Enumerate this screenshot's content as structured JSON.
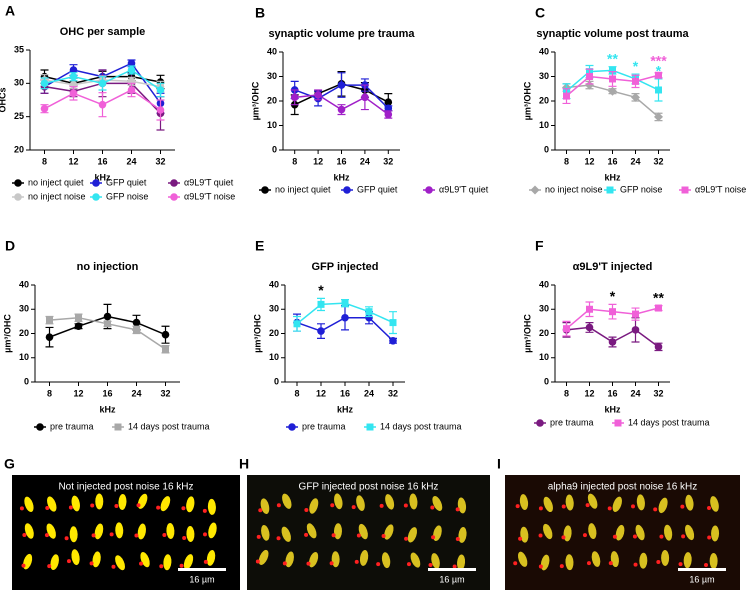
{
  "chart_data": [
    {
      "type": "line",
      "panel": "A",
      "title": "OHC per sample",
      "xlabel": "kHz",
      "ylabel": "OHCs",
      "categories": [
        "8",
        "12",
        "16",
        "24",
        "32"
      ],
      "ylim": [
        20,
        35
      ],
      "yticks": [
        20,
        25,
        30,
        35
      ],
      "series": [
        {
          "name": "no inject quiet",
          "color": "#000000",
          "marker": "circle",
          "values": [
            31,
            30,
            31,
            31,
            30.2
          ],
          "errors": [
            1,
            0.8,
            0.8,
            0.6,
            1
          ]
        },
        {
          "name": "GFP quiet",
          "color": "#1f1fd6",
          "marker": "circle",
          "values": [
            29.5,
            32,
            31,
            33,
            27
          ],
          "errors": [
            1,
            0.8,
            1,
            0.5,
            1.5
          ]
        },
        {
          "name": "α9L9'T quiet",
          "color": "#7a1a80",
          "marker": "circle",
          "values": [
            29.5,
            28.8,
            30,
            30,
            25.5
          ],
          "errors": [
            1,
            0.8,
            2,
            1.5,
            2.5
          ]
        },
        {
          "name": "no inject noise",
          "color": "#c8c8c8",
          "marker": "circle",
          "values": [
            30.5,
            29.8,
            30.5,
            30.3,
            29.5
          ],
          "errors": [
            0.8,
            0.6,
            0.6,
            0.6,
            0.8
          ]
        },
        {
          "name": "GFP noise",
          "color": "#33e5f0",
          "marker": "circle",
          "values": [
            30,
            31,
            30,
            32,
            29
          ],
          "errors": [
            0.8,
            0.6,
            1,
            0.6,
            1
          ]
        },
        {
          "name": "α9L9'T noise",
          "color": "#f060d8",
          "marker": "circle",
          "values": [
            26.2,
            28.5,
            26.8,
            29,
            26
          ],
          "errors": [
            0.6,
            1,
            1.8,
            1,
            1.5
          ]
        }
      ]
    },
    {
      "type": "line",
      "panel": "B",
      "title": "synaptic volume pre trauma",
      "xlabel": "kHz",
      "ylabel": "µm³/OHC",
      "categories": [
        "8",
        "12",
        "16",
        "24",
        "32"
      ],
      "ylim": [
        0,
        40
      ],
      "yticks": [
        0,
        10,
        20,
        30,
        40
      ],
      "series": [
        {
          "name": "no inject quiet",
          "color": "#000000",
          "marker": "circle",
          "values": [
            18.5,
            23,
            27,
            24.5,
            19.5
          ],
          "errors": [
            4,
            1,
            5,
            3,
            3.5
          ]
        },
        {
          "name": "GFP quiet",
          "color": "#1f1fd6",
          "marker": "circle",
          "values": [
            24.5,
            21,
            26.5,
            26.5,
            17
          ],
          "errors": [
            3.5,
            3,
            5,
            2.5,
            1
          ]
        },
        {
          "name": "α9L9'T quiet",
          "color": "#a020c8",
          "marker": "circle",
          "values": [
            21.5,
            22.5,
            16.5,
            21.5,
            14.5
          ],
          "errors": [
            3,
            2,
            2,
            5,
            1.5
          ]
        }
      ]
    },
    {
      "type": "line",
      "panel": "C",
      "title": "synaptic volume post trauma",
      "xlabel": "kHz",
      "ylabel": "µm³/OHC",
      "categories": [
        "8",
        "12",
        "16",
        "24",
        "32"
      ],
      "ylim": [
        0,
        40
      ],
      "yticks": [
        0,
        10,
        20,
        30,
        40
      ],
      "series": [
        {
          "name": "no inject noise",
          "color": "#a8a8a8",
          "marker": "diamond",
          "values": [
            25.5,
            26.5,
            24,
            21.5,
            13.5
          ],
          "errors": [
            1.5,
            1.5,
            1,
            1.5,
            1.5
          ]
        },
        {
          "name": "GFP noise",
          "color": "#33e5f0",
          "marker": "square",
          "values": [
            24,
            32,
            32.5,
            29,
            24.5
          ],
          "errors": [
            3,
            2.5,
            1.5,
            2,
            4.5
          ]
        },
        {
          "name": "α9L9'T noise",
          "color": "#f060d8",
          "marker": "square",
          "values": [
            22,
            30,
            29,
            28,
            30.5
          ],
          "errors": [
            3,
            3,
            3,
            2.5,
            1
          ]
        }
      ],
      "annotations": [
        {
          "text": "**",
          "at": "16",
          "series": "GFP noise",
          "color": "#33e5f0"
        },
        {
          "text": "*",
          "at": "24",
          "series": "GFP noise",
          "color": "#33e5f0"
        },
        {
          "text": "*",
          "at": "32",
          "series": "GFP noise",
          "color": "#33e5f0"
        },
        {
          "text": "***",
          "at": "32",
          "series": "α9L9'T noise",
          "color": "#f060d8"
        }
      ]
    },
    {
      "type": "line",
      "panel": "D",
      "title": "no injection",
      "xlabel": "kHz",
      "ylabel": "µm³/OHC",
      "categories": [
        "8",
        "12",
        "16",
        "24",
        "32"
      ],
      "ylim": [
        0,
        40
      ],
      "yticks": [
        0,
        10,
        20,
        30,
        40
      ],
      "series": [
        {
          "name": "pre trauma",
          "color": "#000000",
          "marker": "circle",
          "values": [
            18.5,
            23,
            27,
            24.5,
            19.5
          ],
          "errors": [
            4,
            1,
            5,
            3,
            3.5
          ]
        },
        {
          "name": "14 days post trauma",
          "color": "#a8a8a8",
          "marker": "square",
          "values": [
            25.5,
            26.5,
            24,
            21.5,
            13.5
          ],
          "errors": [
            1.5,
            1.5,
            1,
            1.5,
            1.5
          ]
        }
      ]
    },
    {
      "type": "line",
      "panel": "E",
      "title": "GFP injected",
      "xlabel": "kHz",
      "ylabel": "µm³/OHC",
      "categories": [
        "8",
        "12",
        "16",
        "24",
        "32"
      ],
      "ylim": [
        0,
        40
      ],
      "yticks": [
        0,
        10,
        20,
        30,
        40
      ],
      "series": [
        {
          "name": "pre trauma",
          "color": "#1f1fd6",
          "marker": "circle",
          "values": [
            24.5,
            21,
            26.5,
            26.5,
            17
          ],
          "errors": [
            3.5,
            3,
            5,
            2.5,
            1
          ]
        },
        {
          "name": "14 days post trauma",
          "color": "#33e5f0",
          "marker": "square",
          "values": [
            24,
            32,
            32.5,
            29,
            24.5
          ],
          "errors": [
            3,
            2.5,
            1.5,
            2,
            4.5
          ]
        }
      ],
      "annotations": [
        {
          "text": "*",
          "at": "12",
          "series": "14 days post trauma",
          "color": "#000000"
        }
      ]
    },
    {
      "type": "line",
      "panel": "F",
      "title": "α9L9'T injected",
      "xlabel": "kHz",
      "ylabel": "µm³/OHC",
      "categories": [
        "8",
        "12",
        "16",
        "24",
        "32"
      ],
      "ylim": [
        0,
        40
      ],
      "yticks": [
        0,
        10,
        20,
        30,
        40
      ],
      "series": [
        {
          "name": "pre trauma",
          "color": "#7a1a80",
          "marker": "circle",
          "values": [
            21.5,
            22.5,
            16.5,
            21.5,
            14.5
          ],
          "errors": [
            3,
            2,
            2,
            5,
            1.5
          ]
        },
        {
          "name": "14 days post trauma",
          "color": "#f060d8",
          "marker": "square",
          "values": [
            22,
            30,
            29,
            28,
            30.5
          ],
          "errors": [
            3,
            3,
            3,
            2.5,
            1
          ]
        }
      ],
      "annotations": [
        {
          "text": "*",
          "at": "16",
          "series": "14 days post trauma",
          "color": "#000000"
        },
        {
          "text": "**",
          "at": "32",
          "series": "14 days post trauma",
          "color": "#000000"
        }
      ]
    }
  ],
  "images": [
    {
      "panel": "G",
      "caption": "Not injected post noise 16 kHz",
      "scale": "16 µm"
    },
    {
      "panel": "H",
      "caption": "GFP injected post noise 16 kHz",
      "scale": "16 µm"
    },
    {
      "panel": "I",
      "caption": "alpha9 injected post noise 16 kHz",
      "scale": "16 µm"
    }
  ]
}
